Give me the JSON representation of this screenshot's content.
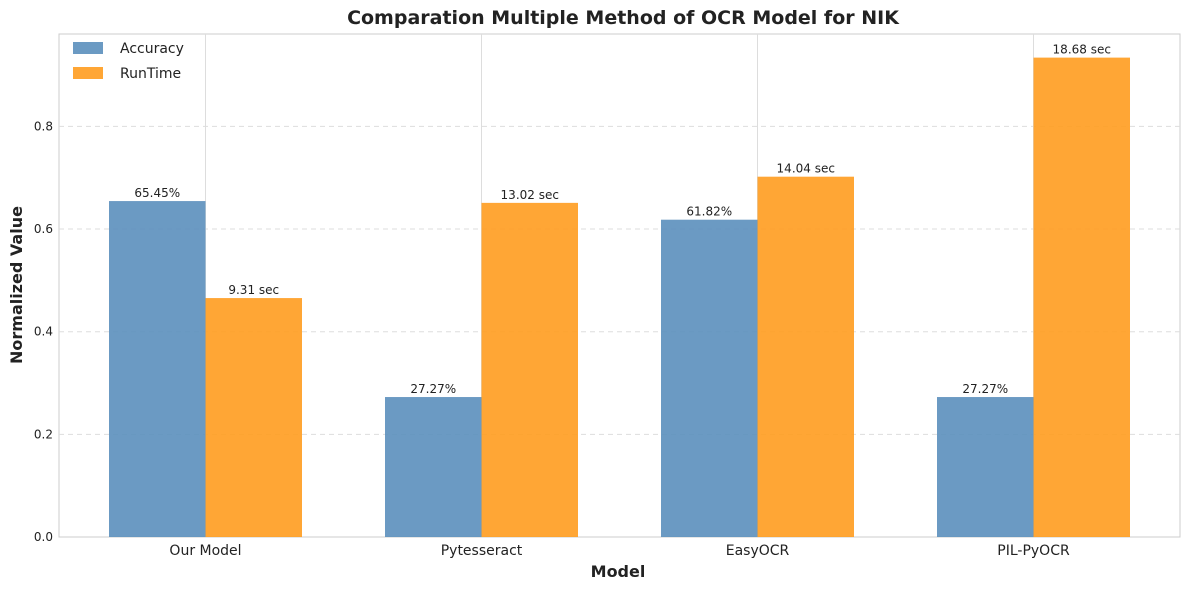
{
  "chart_data": {
    "type": "bar",
    "title": "Comparation Multiple Method of OCR Model for NIK",
    "xlabel": "Model",
    "ylabel": "Normalized Value",
    "categories": [
      "Our Model",
      "Pytesseract",
      "EasyOCR",
      "PIL-PyOCR"
    ],
    "series": [
      {
        "name": "Accuracy",
        "color": "#5b8fbd",
        "values": [
          0.6545,
          0.2727,
          0.6182,
          0.2727
        ],
        "labels": [
          "65.45%",
          "27.27%",
          "61.82%",
          "27.27%"
        ]
      },
      {
        "name": "RunTime",
        "color": "#ff9c1f",
        "values": [
          0.4655,
          0.651,
          0.702,
          0.934
        ],
        "labels": [
          "9.31 sec",
          "13.02 sec",
          "14.04 sec",
          "18.68 sec"
        ]
      }
    ],
    "yticks": [
      "0.0",
      "0.2",
      "0.4",
      "0.6",
      "0.8"
    ],
    "ylim": [
      0,
      0.98
    ],
    "grid": true,
    "legend": "top-left"
  }
}
